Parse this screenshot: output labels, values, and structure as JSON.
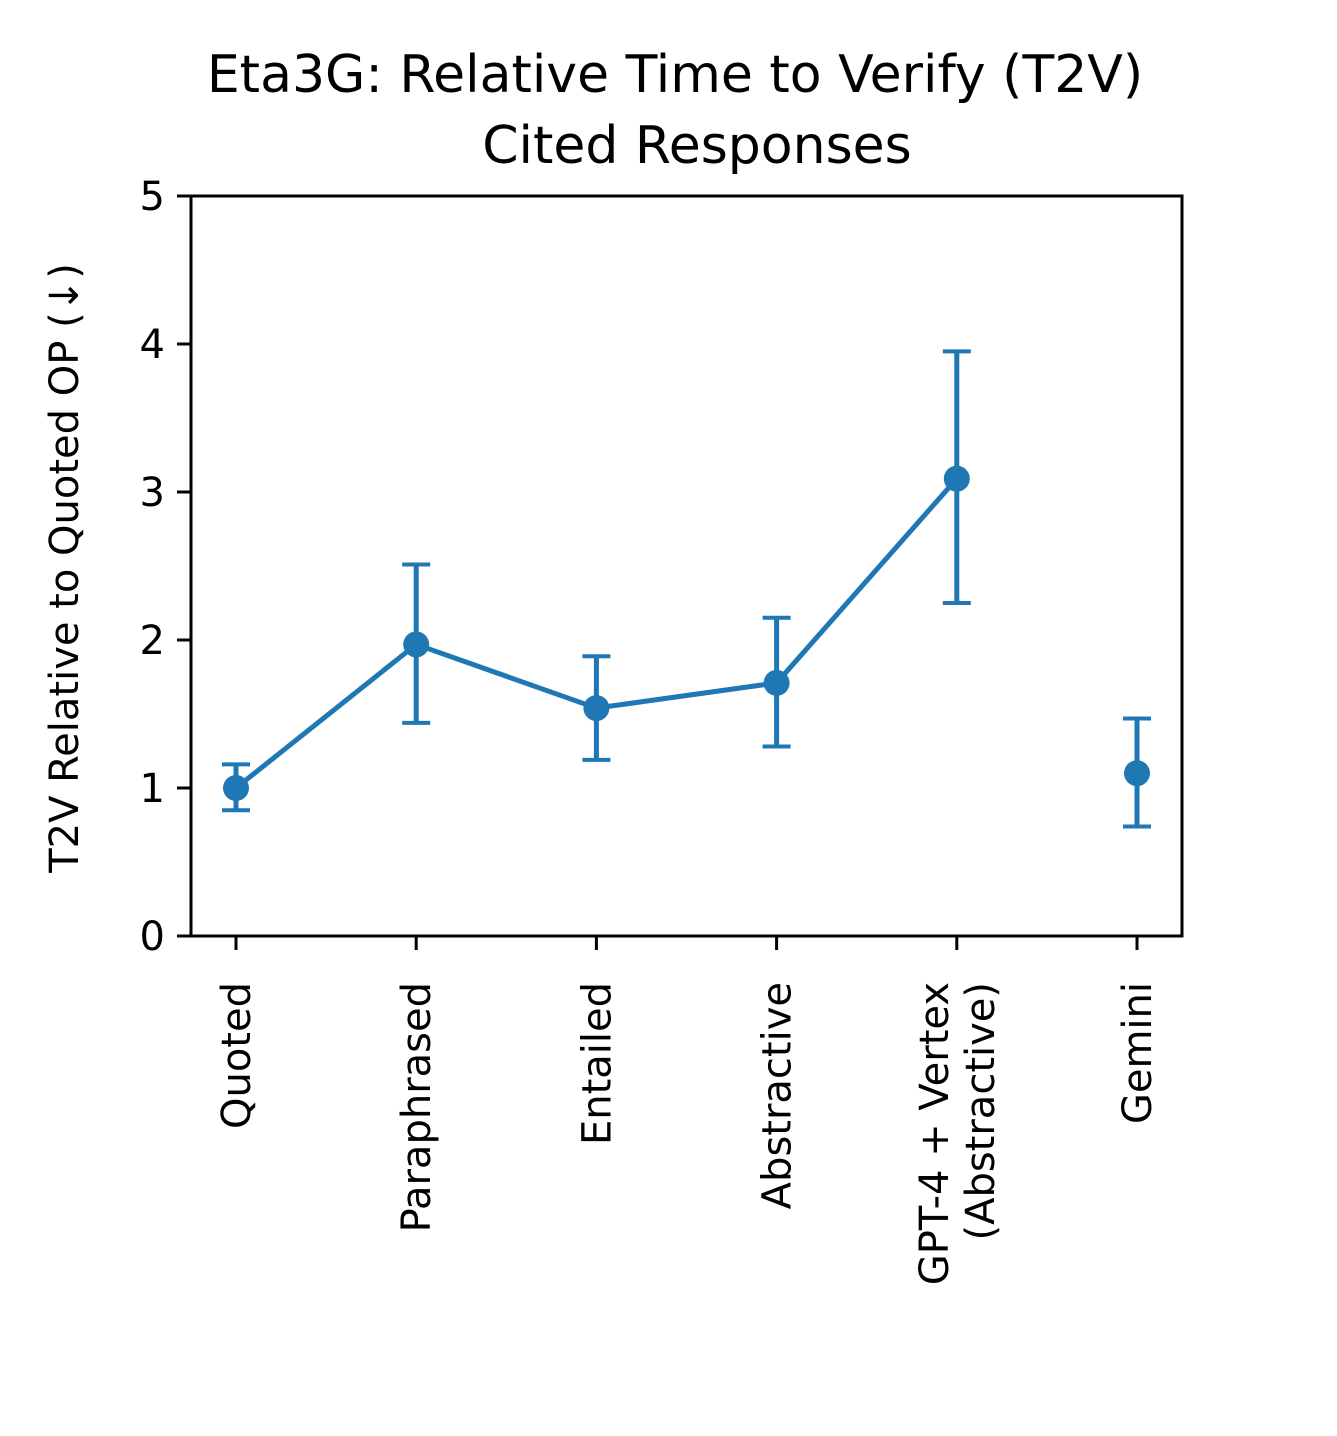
{
  "chart_data": {
    "type": "line",
    "title": "Eta3G: Relative Time to Verify (T2V)",
    "subtitle": "Cited Responses",
    "xlabel": "",
    "ylabel": "T2V Relative to Quoted OP (↓)",
    "ylim": [
      0,
      5
    ],
    "yticks": [
      "0",
      "1",
      "2",
      "3",
      "4",
      "5"
    ],
    "categories": [
      [
        "Quoted"
      ],
      [
        "Paraphrased"
      ],
      [
        "Entailed"
      ],
      [
        "Abstractive"
      ],
      [
        "GPT-4 + Vertex",
        "(Abstractive)"
      ],
      [
        "Gemini"
      ]
    ],
    "series": [
      {
        "values": [
          1.0,
          1.97,
          1.54,
          1.71,
          3.09,
          1.1
        ],
        "error_low": [
          0.85,
          1.44,
          1.19,
          1.28,
          2.25,
          0.74
        ],
        "error_high": [
          1.16,
          2.51,
          1.89,
          2.15,
          3.95,
          1.47
        ],
        "connected": [
          true,
          true,
          true,
          true,
          true,
          false
        ],
        "color": "#1f77b4"
      }
    ],
    "grid": false,
    "legend": "none"
  }
}
